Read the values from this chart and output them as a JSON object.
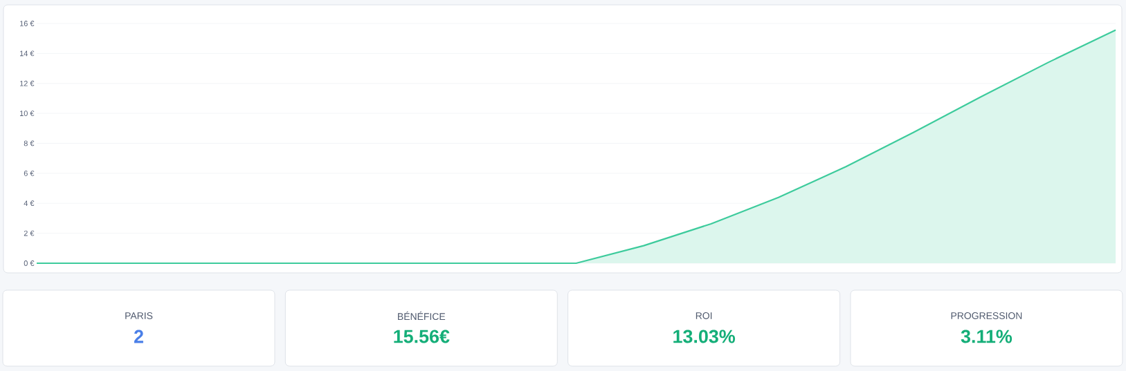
{
  "chart_data": [
    {
      "type": "area",
      "categories": [
        null,
        null,
        null,
        null,
        null,
        null,
        null,
        null,
        null,
        null,
        null,
        null,
        null,
        null,
        null,
        null,
        null
      ],
      "series": [
        {
          "color": "#3dcb9c",
          "values": [
            0,
            0,
            0,
            0,
            0,
            0,
            0,
            0,
            0,
            1.17,
            2.63,
            4.39,
            6.44,
            8.73,
            11.1,
            13.4,
            15.56
          ]
        }
      ],
      "ylim": [
        0,
        16
      ],
      "yticks": [
        {
          "value": 0,
          "label": "0 €"
        },
        {
          "value": 2,
          "label": "2 €"
        },
        {
          "value": 4,
          "label": "4 €"
        },
        {
          "value": 6,
          "label": "6 €"
        },
        {
          "value": 8,
          "label": "8 €"
        },
        {
          "value": 10,
          "label": "10 €"
        },
        {
          "value": 12,
          "label": "12 €"
        },
        {
          "value": 14,
          "label": "14 €"
        },
        {
          "value": 16,
          "label": "16 €"
        }
      ],
      "grid": "y",
      "marker": "none",
      "line_style": "solid"
    },
    {
      "type": "other",
      "title": "PARIS",
      "annotations": [
        "2"
      ],
      "color": "#4a7fe8"
    },
    {
      "type": "other",
      "title": "BÉNÉFICE",
      "annotations": [
        "15.56€"
      ],
      "color": "#14ae78"
    },
    {
      "type": "other",
      "title": "ROI",
      "annotations": [
        "13.03%"
      ],
      "color": "#14ae78"
    },
    {
      "type": "other",
      "title": "PROGRESSION",
      "annotations": [
        "3.11%"
      ],
      "color": "#14ae78"
    }
  ]
}
